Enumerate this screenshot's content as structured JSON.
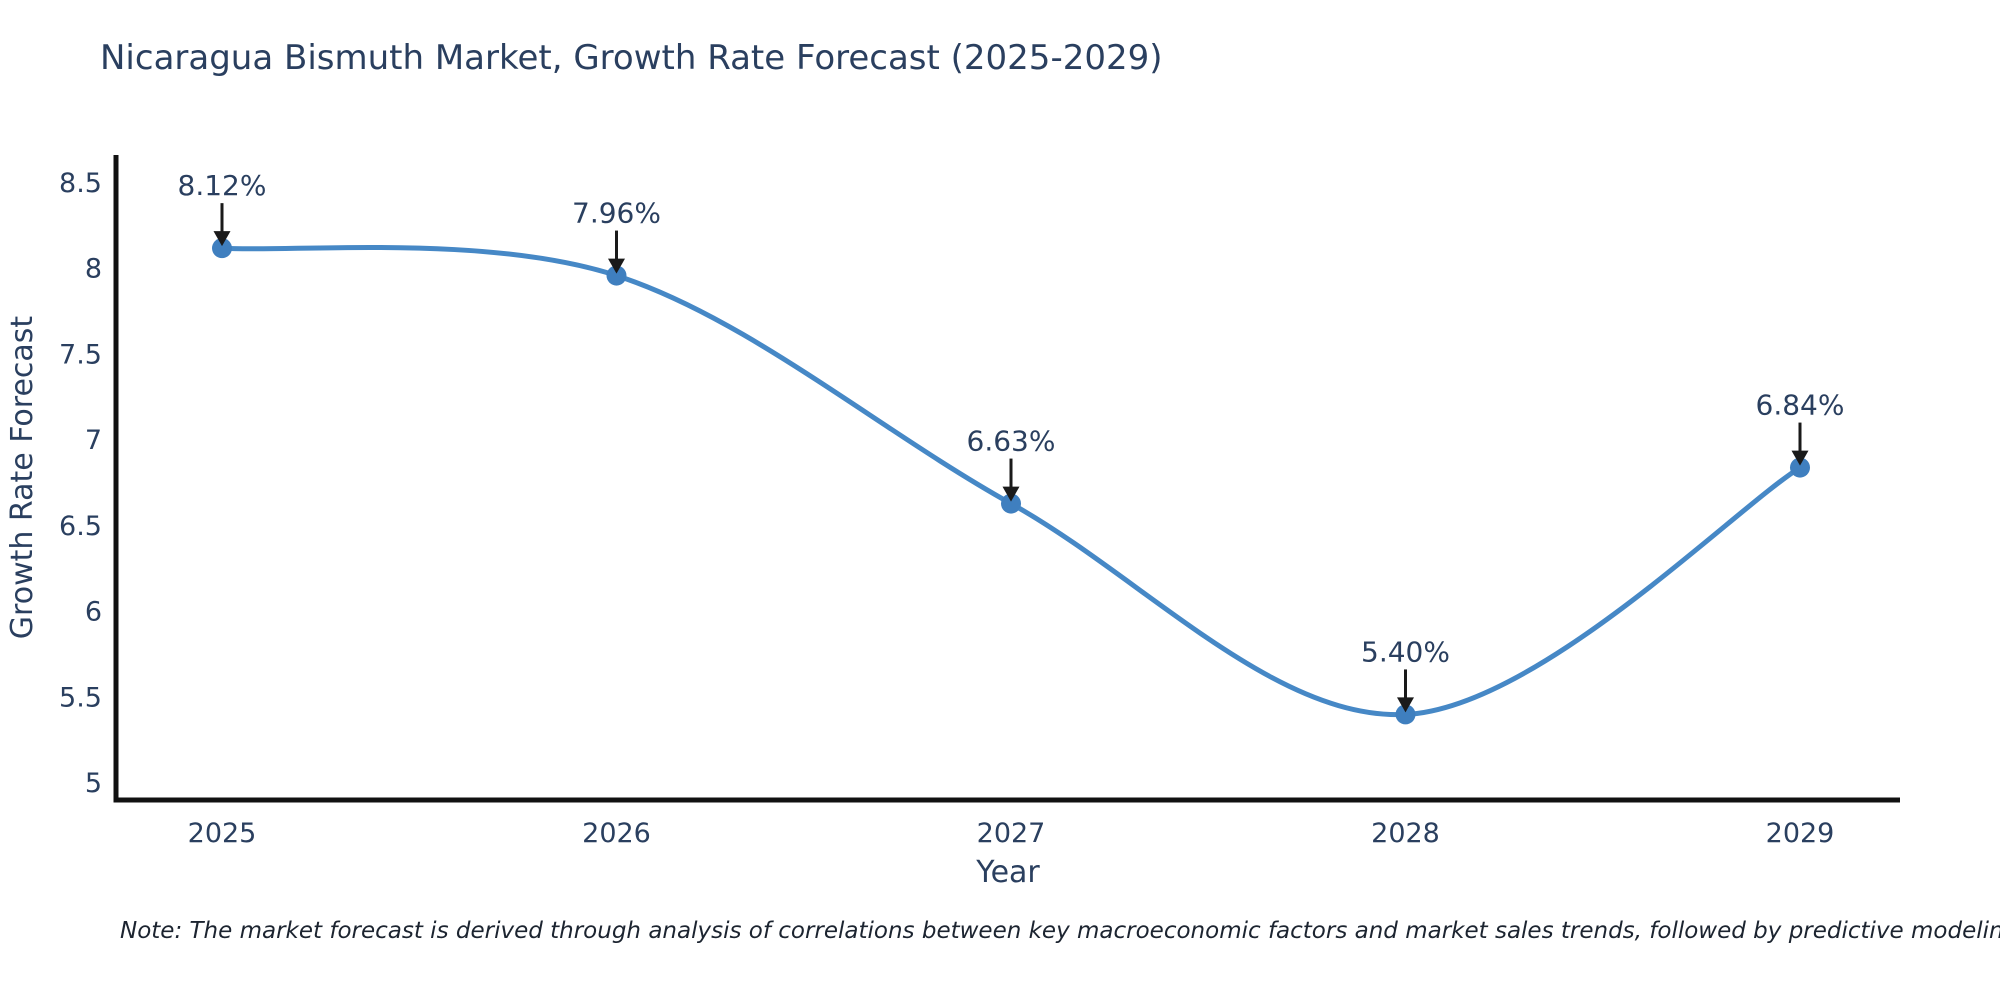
{
  "title": "Nicaragua Bismuth Market, Growth Rate Forecast (2025-2029)",
  "note": "Note: The market forecast is derived through analysis of correlations between key macroeconomic factors and market sales trends, followed by predictive modeling to project future sales",
  "chart_data": {
    "type": "line",
    "title": "Nicaragua Bismuth Market, Growth Rate Forecast (2025-2029)",
    "x": [
      2025,
      2026,
      2027,
      2028,
      2029
    ],
    "categories": [
      "2025",
      "2026",
      "2027",
      "2028",
      "2029"
    ],
    "values": [
      8.12,
      7.96,
      6.63,
      5.4,
      6.84
    ],
    "point_labels": [
      "8.12%",
      "7.96%",
      "6.63%",
      "5.40%",
      "6.84%"
    ],
    "xlabel": "Year",
    "ylabel": "Growth Rate Forecast",
    "ylim": [
      5,
      8.5
    ],
    "yticks": [
      8.5,
      8,
      7.5,
      7,
      6.5,
      6,
      5.5,
      5
    ],
    "line_shape": "spline",
    "grid": false,
    "legend_position": "none",
    "colors": {
      "line": "#4688c6",
      "marker": "#3f7fbf",
      "text": "#2a3f5f",
      "axis": "#111111",
      "arrow": "#1a1a1a",
      "background": "#ffffff"
    }
  }
}
